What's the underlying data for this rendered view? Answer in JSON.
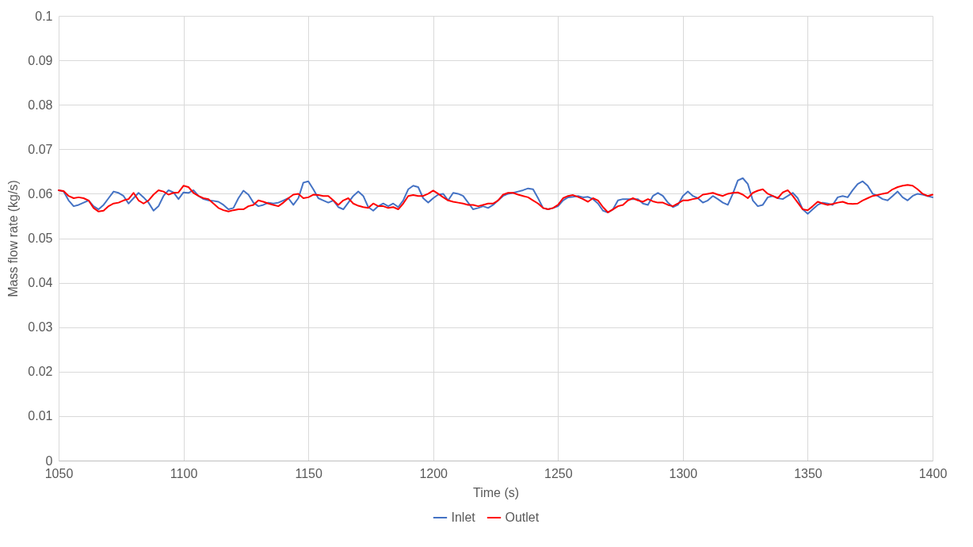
{
  "chart_data": {
    "type": "line",
    "xlabel": "Time (s)",
    "ylabel": "Mass flow rate (kg/s)",
    "x": [
      1050,
      1052,
      1054,
      1056,
      1058,
      1060,
      1062,
      1064,
      1066,
      1068,
      1070,
      1072,
      1074,
      1076,
      1078,
      1080,
      1082,
      1084,
      1086,
      1088,
      1090,
      1092,
      1094,
      1096,
      1098,
      1100,
      1102,
      1104,
      1106,
      1108,
      1110,
      1112,
      1114,
      1116,
      1118,
      1120,
      1122,
      1124,
      1126,
      1128,
      1130,
      1132,
      1134,
      1136,
      1138,
      1140,
      1142,
      1144,
      1146,
      1148,
      1150,
      1152,
      1154,
      1156,
      1158,
      1160,
      1162,
      1164,
      1166,
      1168,
      1170,
      1172,
      1174,
      1176,
      1178,
      1180,
      1182,
      1184,
      1186,
      1188,
      1190,
      1192,
      1194,
      1196,
      1198,
      1200,
      1202,
      1204,
      1206,
      1208,
      1210,
      1212,
      1214,
      1216,
      1218,
      1220,
      1222,
      1224,
      1226,
      1228,
      1230,
      1232,
      1234,
      1236,
      1238,
      1240,
      1242,
      1244,
      1246,
      1248,
      1250,
      1252,
      1254,
      1256,
      1258,
      1260,
      1262,
      1264,
      1266,
      1268,
      1270,
      1272,
      1274,
      1276,
      1278,
      1280,
      1282,
      1284,
      1286,
      1288,
      1290,
      1292,
      1294,
      1296,
      1298,
      1300,
      1302,
      1304,
      1306,
      1308,
      1310,
      1312,
      1314,
      1316,
      1318,
      1320,
      1322,
      1324,
      1326,
      1328,
      1330,
      1332,
      1334,
      1336,
      1338,
      1340,
      1342,
      1344,
      1346,
      1348,
      1350,
      1352,
      1354,
      1356,
      1358,
      1360,
      1362,
      1364,
      1366,
      1368,
      1370,
      1372,
      1374,
      1376,
      1378,
      1380,
      1382,
      1384,
      1386,
      1388,
      1390,
      1392,
      1394,
      1396,
      1398,
      1400
    ],
    "series": [
      {
        "name": "Inlet",
        "color": "#4472c4",
        "values": [
          0.0608,
          0.0605,
          0.0585,
          0.0572,
          0.0575,
          0.058,
          0.0585,
          0.0572,
          0.0565,
          0.0575,
          0.059,
          0.0605,
          0.0602,
          0.0595,
          0.0578,
          0.059,
          0.0602,
          0.0592,
          0.058,
          0.0562,
          0.0572,
          0.0595,
          0.0608,
          0.0603,
          0.0588,
          0.0603,
          0.0602,
          0.0608,
          0.0595,
          0.0588,
          0.0585,
          0.0584,
          0.0582,
          0.0575,
          0.0565,
          0.0568,
          0.059,
          0.0607,
          0.0598,
          0.058,
          0.0572,
          0.0575,
          0.058,
          0.0578,
          0.058,
          0.0585,
          0.059,
          0.0575,
          0.059,
          0.0625,
          0.0628,
          0.061,
          0.059,
          0.0585,
          0.058,
          0.0585,
          0.057,
          0.0565,
          0.058,
          0.0595,
          0.0605,
          0.0595,
          0.057,
          0.0562,
          0.0572,
          0.0578,
          0.0572,
          0.0578,
          0.057,
          0.0585,
          0.061,
          0.0618,
          0.0615,
          0.059,
          0.058,
          0.059,
          0.0598,
          0.06,
          0.0585,
          0.0602,
          0.06,
          0.0595,
          0.058,
          0.0565,
          0.0568,
          0.0572,
          0.0568,
          0.0575,
          0.0585,
          0.0595,
          0.06,
          0.0602,
          0.0605,
          0.0608,
          0.0612,
          0.061,
          0.059,
          0.0568,
          0.0565,
          0.0568,
          0.0572,
          0.0585,
          0.0592,
          0.0593,
          0.0595,
          0.0592,
          0.0593,
          0.0588,
          0.0578,
          0.0562,
          0.0558,
          0.0565,
          0.0585,
          0.0588,
          0.0588,
          0.0588,
          0.0588,
          0.0578,
          0.0575,
          0.0595,
          0.0602,
          0.0595,
          0.058,
          0.057,
          0.0575,
          0.0595,
          0.0605,
          0.0595,
          0.059,
          0.058,
          0.0585,
          0.0595,
          0.0588,
          0.058,
          0.0575,
          0.06,
          0.063,
          0.0635,
          0.0622,
          0.0585,
          0.0572,
          0.0575,
          0.0592,
          0.0595,
          0.059,
          0.0588,
          0.0595,
          0.0602,
          0.059,
          0.0565,
          0.0555,
          0.0565,
          0.0575,
          0.058,
          0.0578,
          0.0575,
          0.0592,
          0.0595,
          0.0592,
          0.0608,
          0.0622,
          0.0628,
          0.0618,
          0.06,
          0.0595,
          0.0588,
          0.0585,
          0.0595,
          0.0605,
          0.0592,
          0.0585,
          0.0595,
          0.06,
          0.0598,
          0.0595,
          0.0592
        ]
      },
      {
        "name": "Outlet",
        "color": "#ff0000",
        "values": [
          0.0608,
          0.0606,
          0.0595,
          0.059,
          0.0592,
          0.059,
          0.0585,
          0.0568,
          0.056,
          0.0562,
          0.0572,
          0.0578,
          0.058,
          0.0585,
          0.0588,
          0.0602,
          0.0585,
          0.0578,
          0.0585,
          0.0598,
          0.0608,
          0.0605,
          0.0598,
          0.0602,
          0.0603,
          0.0618,
          0.0615,
          0.0602,
          0.0595,
          0.059,
          0.0588,
          0.0578,
          0.0568,
          0.0563,
          0.056,
          0.0563,
          0.0565,
          0.0565,
          0.0572,
          0.0575,
          0.0585,
          0.0582,
          0.0578,
          0.0575,
          0.0572,
          0.058,
          0.059,
          0.0598,
          0.06,
          0.059,
          0.0592,
          0.0598,
          0.0597,
          0.0595,
          0.0595,
          0.0585,
          0.0575,
          0.0585,
          0.059,
          0.0578,
          0.0573,
          0.057,
          0.0568,
          0.0578,
          0.0572,
          0.0572,
          0.0568,
          0.057,
          0.0565,
          0.0578,
          0.0595,
          0.0597,
          0.0595,
          0.0595,
          0.06,
          0.0607,
          0.06,
          0.0592,
          0.0585,
          0.0582,
          0.058,
          0.0578,
          0.0575,
          0.0575,
          0.0572,
          0.0575,
          0.0578,
          0.0578,
          0.0585,
          0.0598,
          0.0602,
          0.0602,
          0.0598,
          0.0595,
          0.0592,
          0.0585,
          0.0578,
          0.0568,
          0.0565,
          0.0568,
          0.0575,
          0.059,
          0.0595,
          0.0597,
          0.0593,
          0.0588,
          0.0582,
          0.059,
          0.0585,
          0.057,
          0.0558,
          0.0565,
          0.0572,
          0.0575,
          0.0585,
          0.059,
          0.0585,
          0.0582,
          0.0588,
          0.0583,
          0.058,
          0.058,
          0.0575,
          0.0572,
          0.0578,
          0.0585,
          0.0585,
          0.0588,
          0.059,
          0.0598,
          0.06,
          0.0602,
          0.0598,
          0.0595,
          0.06,
          0.0602,
          0.0603,
          0.0598,
          0.059,
          0.0602,
          0.0607,
          0.061,
          0.06,
          0.0595,
          0.059,
          0.0603,
          0.0608,
          0.0595,
          0.058,
          0.0565,
          0.0563,
          0.0572,
          0.0582,
          0.0578,
          0.0575,
          0.0577,
          0.058,
          0.0582,
          0.0578,
          0.0577,
          0.0578,
          0.0585,
          0.059,
          0.0595,
          0.0597,
          0.06,
          0.0602,
          0.061,
          0.0615,
          0.0618,
          0.062,
          0.0618,
          0.061,
          0.06,
          0.0595,
          0.0598
        ]
      }
    ],
    "xlim": [
      1050,
      1400
    ],
    "xticks": [
      1050,
      1100,
      1150,
      1200,
      1250,
      1300,
      1350,
      1400
    ],
    "ylim": [
      0,
      0.1
    ],
    "yticks": [
      0,
      0.01,
      0.02,
      0.03,
      0.04,
      0.05,
      0.06,
      0.07,
      0.08,
      0.09,
      0.1
    ],
    "grid": true,
    "legend": "bottom"
  }
}
